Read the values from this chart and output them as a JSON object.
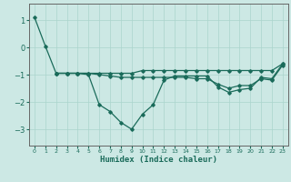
{
  "xlabel": "Humidex (Indice chaleur)",
  "bg_color": "#cce8e4",
  "grid_color": "#aad4cc",
  "line_color": "#1a6b5a",
  "spine_color": "#666666",
  "xlim": [
    -0.5,
    23.5
  ],
  "ylim": [
    -3.6,
    1.6
  ],
  "yticks": [
    -3,
    -2,
    -1,
    0,
    1
  ],
  "xticks": [
    0,
    1,
    2,
    3,
    4,
    5,
    6,
    7,
    8,
    9,
    10,
    11,
    12,
    13,
    14,
    15,
    16,
    17,
    18,
    19,
    20,
    21,
    22,
    23
  ],
  "line1_x": [
    0,
    1,
    2,
    3,
    4,
    5,
    6,
    7,
    8,
    9,
    10,
    11,
    12,
    13,
    14,
    15,
    16,
    17,
    18,
    19,
    20,
    21,
    22,
    23
  ],
  "line1_y": [
    1.1,
    0.05,
    -0.95,
    -0.95,
    -0.95,
    -1.0,
    -2.1,
    -2.35,
    -2.75,
    -3.0,
    -2.45,
    -2.1,
    -1.2,
    -1.05,
    -1.05,
    -1.05,
    -1.05,
    -1.45,
    -1.65,
    -1.55,
    -1.5,
    -1.1,
    -1.15,
    -0.6
  ],
  "line2_x": [
    2,
    3,
    4,
    5,
    6,
    7,
    8,
    9,
    10,
    11,
    12,
    13,
    14,
    15,
    16,
    17,
    18,
    19,
    20,
    21,
    22,
    23
  ],
  "line2_y": [
    -0.95,
    -0.95,
    -0.95,
    -0.95,
    -0.95,
    -0.95,
    -0.95,
    -0.95,
    -0.85,
    -0.85,
    -0.85,
    -0.85,
    -0.85,
    -0.85,
    -0.85,
    -0.85,
    -0.85,
    -0.85,
    -0.85,
    -0.85,
    -0.85,
    -0.6
  ],
  "line3_x": [
    2,
    3,
    4,
    5,
    6,
    7,
    8,
    9,
    10,
    11,
    12,
    13,
    14,
    15,
    16,
    17,
    18,
    19,
    20,
    21,
    22,
    23
  ],
  "line3_y": [
    -0.95,
    -0.95,
    -0.95,
    -0.95,
    -1.0,
    -1.05,
    -1.1,
    -1.1,
    -1.1,
    -1.1,
    -1.1,
    -1.1,
    -1.1,
    -1.15,
    -1.15,
    -1.35,
    -1.5,
    -1.4,
    -1.4,
    -1.15,
    -1.2,
    -0.65
  ],
  "marker": "D",
  "markersize": 1.8,
  "linewidth": 0.9,
  "xlabel_fontsize": 6.5,
  "xtick_fontsize": 4.5,
  "ytick_fontsize": 6.0
}
